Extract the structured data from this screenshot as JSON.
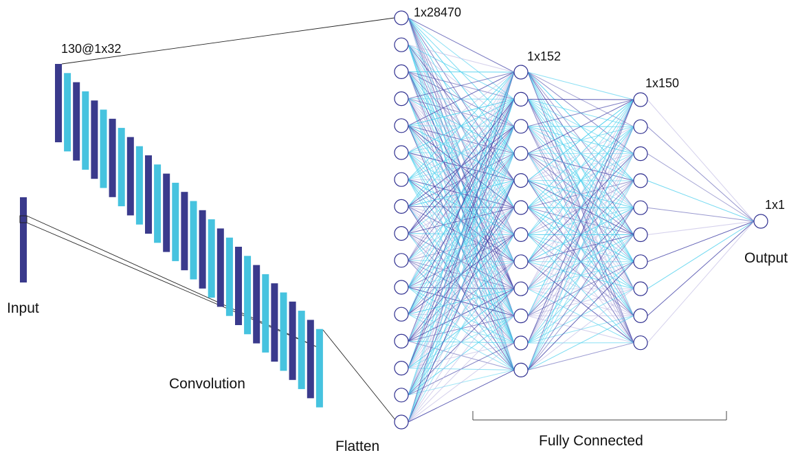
{
  "labels": {
    "input": "Input",
    "conv_shape": "130@1x32",
    "convolution": "Convolution",
    "flatten": "Flatten",
    "flatten_shape": "1x28470",
    "dense1_shape": "1x152",
    "dense2_shape": "1x150",
    "output_shape": "1x1",
    "output": "Output",
    "fully_connected": "Fully Connected"
  },
  "colors": {
    "dark_filter": "#3a3a8c",
    "light_filter": "#46c3df",
    "node_stroke": "#2e2e8f",
    "edge_light": "#4fd0ee",
    "edge_dark": "#4040a6",
    "edge_pale": "#b8b0e0"
  },
  "layers": {
    "filter_count_drawn": 30,
    "flatten_nodes_drawn": 16,
    "dense1_nodes_drawn": 12,
    "dense2_nodes_drawn": 10,
    "output_nodes": 1
  }
}
